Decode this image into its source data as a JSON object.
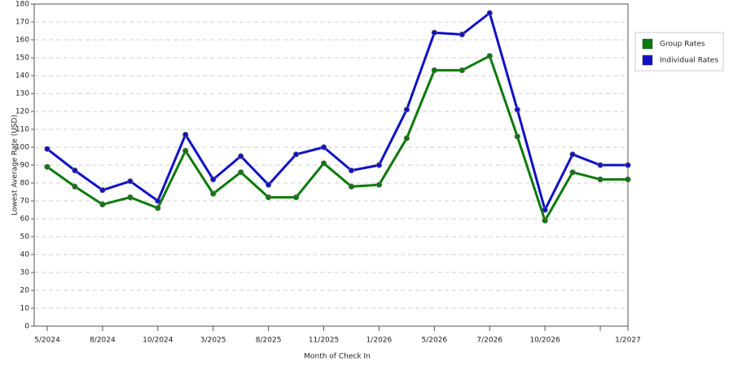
{
  "chart_data": {
    "type": "line",
    "x_label": "Month of Check In",
    "y_label": "Lowest Average Rate (USD)",
    "categories": [
      "5/2024",
      null,
      "8/2024",
      null,
      "10/2024",
      null,
      "3/2025",
      null,
      "8/2025",
      null,
      "11/2025",
      null,
      "1/2026",
      null,
      "5/2026",
      null,
      "7/2026",
      null,
      "10/2026",
      null,
      null,
      "1/2027"
    ],
    "series": [
      {
        "name": "Group Rates",
        "color": "#0a7a0a",
        "values": [
          89,
          78,
          68,
          72,
          66,
          98,
          74,
          86,
          72,
          72,
          91,
          78,
          79,
          105,
          143,
          143,
          151,
          106,
          59,
          86,
          82,
          82
        ]
      },
      {
        "name": "Individual Rates",
        "color": "#1010c8",
        "values": [
          99,
          87,
          76,
          81,
          70,
          107,
          82,
          95,
          79,
          96,
          100,
          87,
          90,
          121,
          164,
          163,
          175,
          121,
          65,
          96,
          90,
          90
        ]
      }
    ],
    "ylim": [
      0,
      180
    ],
    "yticks": [
      0,
      10,
      20,
      30,
      40,
      50,
      60,
      70,
      80,
      90,
      100,
      110,
      120,
      130,
      140,
      150,
      160,
      170,
      180
    ],
    "grid": true,
    "legend": "right"
  }
}
